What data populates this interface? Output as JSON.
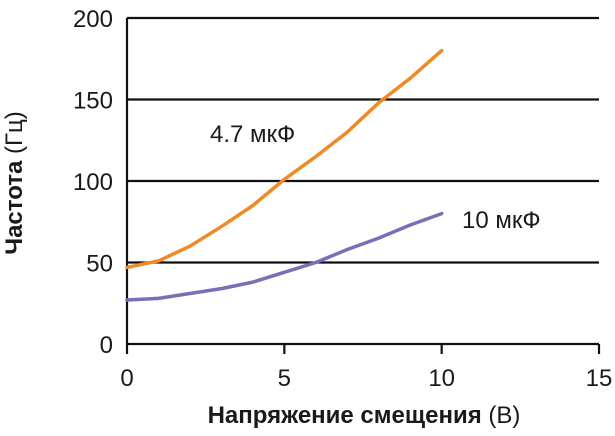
{
  "chart_data": {
    "type": "line",
    "xlabel_bold": "Напряжение смещения",
    "xlabel_unit": "(В)",
    "ylabel_bold": "Частота",
    "ylabel_unit": "(Гц)",
    "xlim": [
      0,
      15
    ],
    "ylim": [
      0,
      200
    ],
    "x_ticks": [
      0,
      5,
      10,
      15
    ],
    "y_ticks": [
      0,
      50,
      100,
      150,
      200
    ],
    "x_tick_labels": [
      "0",
      "5",
      "10",
      "15"
    ],
    "y_tick_labels": [
      "0",
      "50",
      "100",
      "150",
      "200"
    ],
    "grid": "horizontal",
    "series": [
      {
        "name": "4.7 мкФ",
        "color": "#F08A24",
        "x": [
          0,
          1,
          2,
          3,
          4,
          5,
          6,
          7,
          8,
          9,
          10
        ],
        "y": [
          47,
          51,
          60,
          72,
          85,
          101,
          115,
          130,
          148,
          163,
          180
        ]
      },
      {
        "name": "10 мкФ",
        "color": "#7B6DB8",
        "x": [
          0,
          1,
          2,
          3,
          4,
          5,
          6,
          7,
          8,
          9,
          10
        ],
        "y": [
          27,
          28,
          31,
          34,
          38,
          44,
          50,
          58,
          65,
          73,
          80
        ]
      }
    ]
  }
}
